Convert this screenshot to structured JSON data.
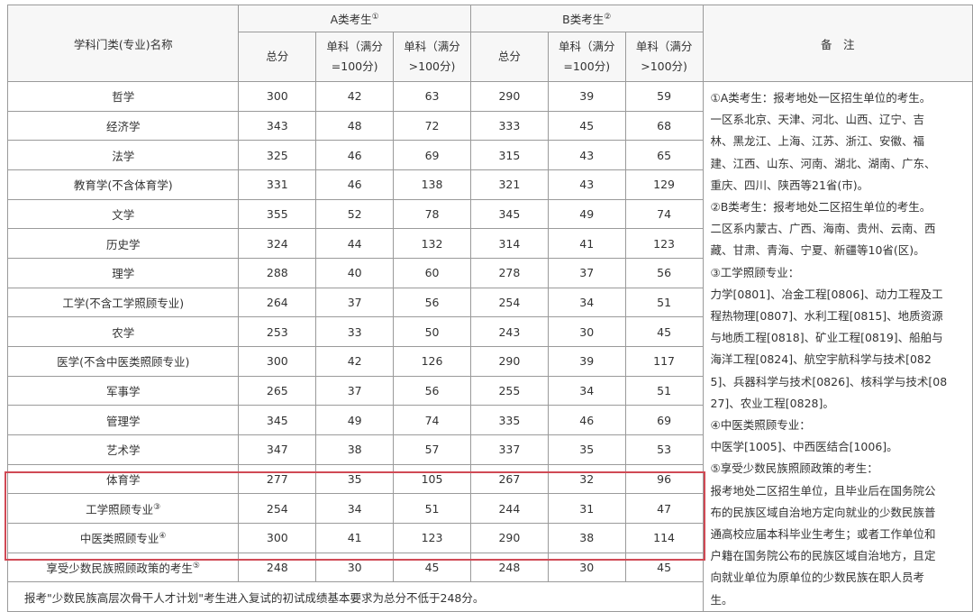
{
  "header": {
    "name_col": "学科门类(专业)名称",
    "group_a": "A类考生",
    "group_a_mark": "①",
    "group_b": "B类考生",
    "group_b_mark": "②",
    "total": "总分",
    "single_100": "单科（满分=100分)",
    "single_over100": "单科（满分>100分)",
    "notes": "备　注"
  },
  "rows": [
    {
      "name": "哲学",
      "mark": "",
      "a": [
        "300",
        "42",
        "63"
      ],
      "b": [
        "290",
        "39",
        "59"
      ]
    },
    {
      "name": "经济学",
      "mark": "",
      "a": [
        "343",
        "48",
        "72"
      ],
      "b": [
        "333",
        "45",
        "68"
      ]
    },
    {
      "name": "法学",
      "mark": "",
      "a": [
        "325",
        "46",
        "69"
      ],
      "b": [
        "315",
        "43",
        "65"
      ]
    },
    {
      "name": "教育学(不含体育学)",
      "mark": "",
      "a": [
        "331",
        "46",
        "138"
      ],
      "b": [
        "321",
        "43",
        "129"
      ]
    },
    {
      "name": "文学",
      "mark": "",
      "a": [
        "355",
        "52",
        "78"
      ],
      "b": [
        "345",
        "49",
        "74"
      ]
    },
    {
      "name": "历史学",
      "mark": "",
      "a": [
        "324",
        "44",
        "132"
      ],
      "b": [
        "314",
        "41",
        "123"
      ]
    },
    {
      "name": "理学",
      "mark": "",
      "a": [
        "288",
        "40",
        "60"
      ],
      "b": [
        "278",
        "37",
        "56"
      ]
    },
    {
      "name": "工学(不含工学照顾专业)",
      "mark": "",
      "a": [
        "264",
        "37",
        "56"
      ],
      "b": [
        "254",
        "34",
        "51"
      ]
    },
    {
      "name": "农学",
      "mark": "",
      "a": [
        "253",
        "33",
        "50"
      ],
      "b": [
        "243",
        "30",
        "45"
      ]
    },
    {
      "name": "医学(不含中医类照顾专业)",
      "mark": "",
      "a": [
        "300",
        "42",
        "126"
      ],
      "b": [
        "290",
        "39",
        "117"
      ]
    },
    {
      "name": "军事学",
      "mark": "",
      "a": [
        "265",
        "37",
        "56"
      ],
      "b": [
        "255",
        "34",
        "51"
      ]
    },
    {
      "name": "管理学",
      "mark": "",
      "a": [
        "345",
        "49",
        "74"
      ],
      "b": [
        "335",
        "46",
        "69"
      ]
    },
    {
      "name": "艺术学",
      "mark": "",
      "a": [
        "347",
        "38",
        "57"
      ],
      "b": [
        "337",
        "35",
        "53"
      ]
    },
    {
      "name": "体育学",
      "mark": "",
      "a": [
        "277",
        "35",
        "105"
      ],
      "b": [
        "267",
        "32",
        "96"
      ]
    },
    {
      "name": "工学照顾专业",
      "mark": "③",
      "a": [
        "254",
        "34",
        "51"
      ],
      "b": [
        "244",
        "31",
        "47"
      ]
    },
    {
      "name": "中医类照顾专业",
      "mark": "④",
      "a": [
        "300",
        "41",
        "123"
      ],
      "b": [
        "290",
        "38",
        "114"
      ]
    },
    {
      "name": "享受少数民族照顾政策的考生",
      "mark": "⑤",
      "a": [
        "248",
        "30",
        "45"
      ],
      "b": [
        "248",
        "30",
        "45"
      ]
    }
  ],
  "notes_lines": [
    "①A类考生：报考地处一区招生单位的考生。",
    "一区系北京、天津、河北、山西、辽宁、吉",
    "林、黑龙江、上海、江苏、浙江、安徽、福",
    "建、江西、山东、河南、湖北、湖南、广东、",
    "重庆、四川、陕西等21省(市)。",
    "②B类考生：报考地处二区招生单位的考生。",
    "二区系内蒙古、广西、海南、贵州、云南、西",
    "藏、甘肃、青海、宁夏、新疆等10省(区)。",
    "③工学照顾专业：",
    "力学[0801]、冶金工程[0806]、动力工程及工",
    "程热物理[0807]、水利工程[0815]、地质资源",
    "与地质工程[0818]、矿业工程[0819]、船舶与",
    "海洋工程[0824]、航空宇航科学与技术[082",
    "5]、兵器科学与技术[0826]、核科学与技术[08",
    "27]、农业工程[0828]。",
    "④中医类照顾专业：",
    "中医学[1005]、中西医结合[1006]。",
    "⑤享受少数民族照顾政策的考生：",
    "报考地处二区招生单位，且毕业后在国务院公",
    "布的民族区域自治地方定向就业的少数民族普",
    "通高校应届本科毕业生考生；或者工作单位和",
    "户籍在国务院公布的民族区域自治地方，且定",
    "向就业单位为原单位的少数民族在职人员考",
    "生。"
  ],
  "footer": "报考\"少数民族高层次骨干人才计划\"考生进入复试的初试成绩基本要求为总分不低于248分。",
  "highlight_color": "#d04a55"
}
